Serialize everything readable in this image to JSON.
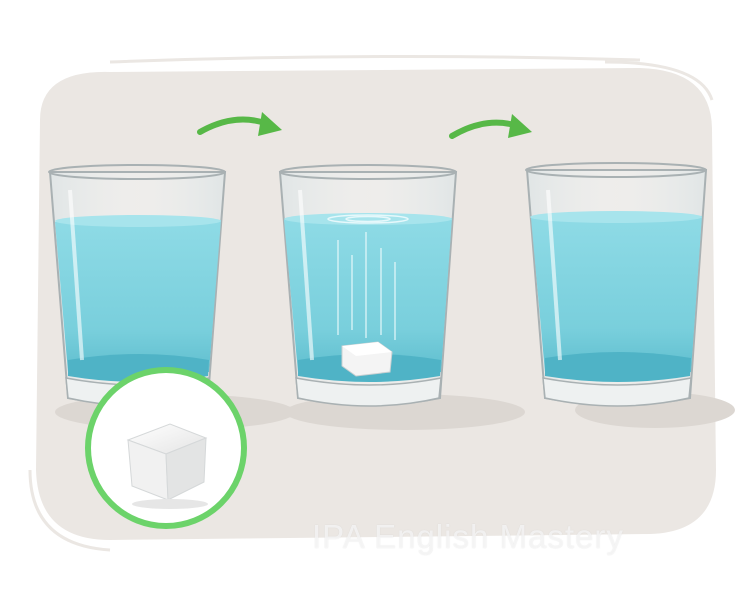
{
  "scene": {
    "description_steps": [
      "glass-with-sugar-cube-outside",
      "sugar-cube-dissolving-in-glass",
      "glass-with-dissolved-sugar"
    ],
    "colors": {
      "backdrop": "#ebe7e3",
      "water": "#7fd3df",
      "water_dark": "#4fb3c6",
      "glass_edge": "#9aa3a6",
      "arrow": "#57b847",
      "circle": "#6cd36a",
      "cube": "#f2f2f2"
    }
  },
  "watermark": {
    "text": "IPA English Mastery"
  }
}
